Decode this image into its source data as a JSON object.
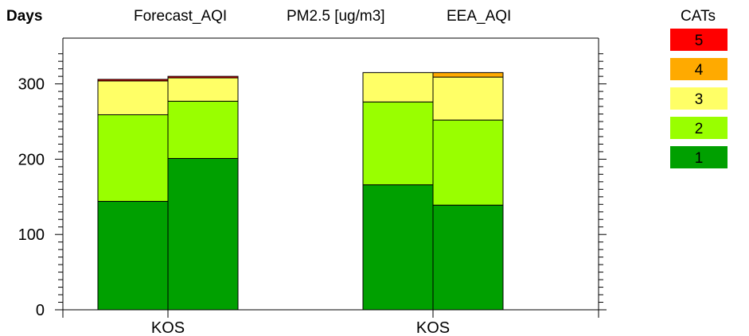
{
  "chart_data": {
    "type": "bar",
    "stacked": true,
    "ylabel": "Days",
    "header_labels": [
      "Forecast_AQI",
      "PM2.5 [ug/m3]",
      "EEA_AQI"
    ],
    "legend_title": "CATs",
    "legend_position": "top-right",
    "ylim": [
      0,
      365
    ],
    "yticks": [
      0,
      100,
      200,
      300
    ],
    "grid": false,
    "categories": [
      "KOS",
      "KOS"
    ],
    "bars": [
      {
        "group": 0,
        "segments": [
          144,
          115,
          45,
          0,
          2
        ]
      },
      {
        "group": 0,
        "segments": [
          201,
          76,
          31,
          0,
          2
        ]
      },
      {
        "group": 1,
        "segments": [
          166,
          110,
          39,
          0,
          0
        ]
      },
      {
        "group": 1,
        "segments": [
          139,
          113,
          57,
          6,
          0
        ]
      }
    ],
    "series": [
      {
        "name": "1",
        "color": "#00a000"
      },
      {
        "name": "2",
        "color": "#99ff00"
      },
      {
        "name": "3",
        "color": "#ffff66"
      },
      {
        "name": "4",
        "color": "#ffaa00"
      },
      {
        "name": "5",
        "color": "#ff0000"
      }
    ]
  }
}
